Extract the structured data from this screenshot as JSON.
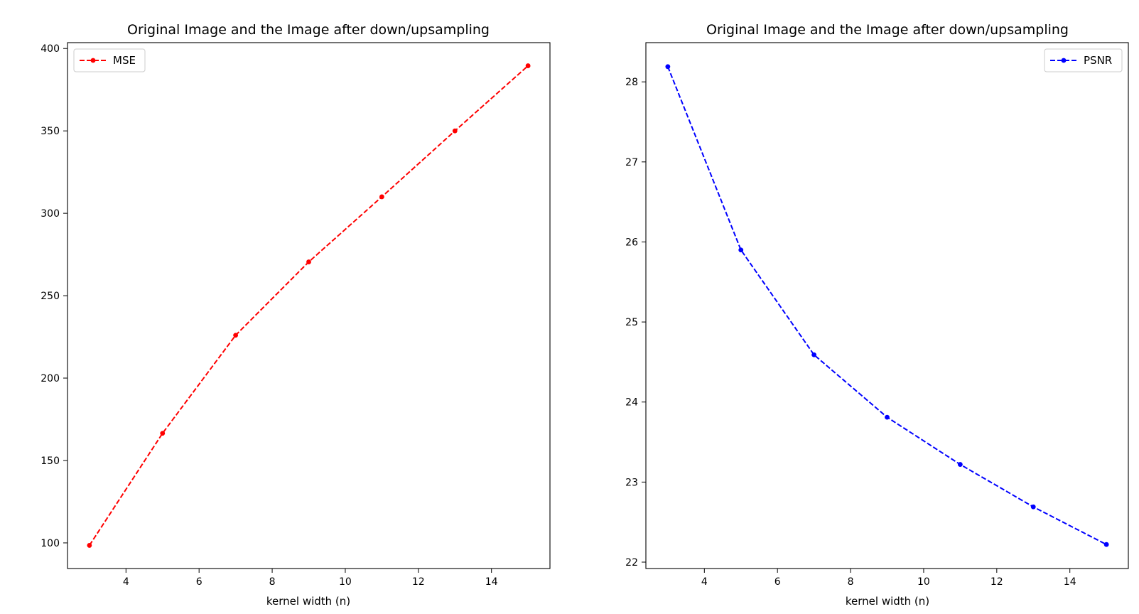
{
  "chart_data": [
    {
      "type": "line",
      "title": "Original Image and the Image after down/upsampling",
      "xlabel": "kernel width (n)",
      "ylabel": "",
      "x": [
        3,
        5,
        7,
        9,
        11,
        13,
        15
      ],
      "series": [
        {
          "name": "MSE",
          "values": [
            98.5,
            166.5,
            226.0,
            270.5,
            310.0,
            350.0,
            389.5
          ],
          "color": "#ff0000",
          "line_style": "dashed",
          "marker": "dot"
        }
      ],
      "xlim": [
        2.4,
        15.6
      ],
      "ylim": [
        84.45,
        403.55
      ],
      "xticks": [
        4,
        6,
        8,
        10,
        12,
        14
      ],
      "yticks": [
        100,
        150,
        200,
        250,
        300,
        350,
        400
      ],
      "grid": false,
      "legend": "upper-left"
    },
    {
      "type": "line",
      "title": "Original Image and the Image after down/upsampling",
      "xlabel": "kernel width (n)",
      "ylabel": "",
      "x": [
        3,
        5,
        7,
        9,
        11,
        13,
        15
      ],
      "series": [
        {
          "name": "PSNR",
          "values": [
            28.19,
            25.9,
            24.59,
            23.81,
            23.22,
            22.69,
            22.22
          ],
          "color": "#0000ff",
          "line_style": "dashed",
          "marker": "dot"
        }
      ],
      "xlim": [
        2.4,
        15.6
      ],
      "ylim": [
        21.92,
        28.49
      ],
      "xticks": [
        4,
        6,
        8,
        10,
        12,
        14
      ],
      "yticks": [
        22,
        23,
        24,
        25,
        26,
        27,
        28
      ],
      "grid": false,
      "legend": "upper-right"
    }
  ]
}
